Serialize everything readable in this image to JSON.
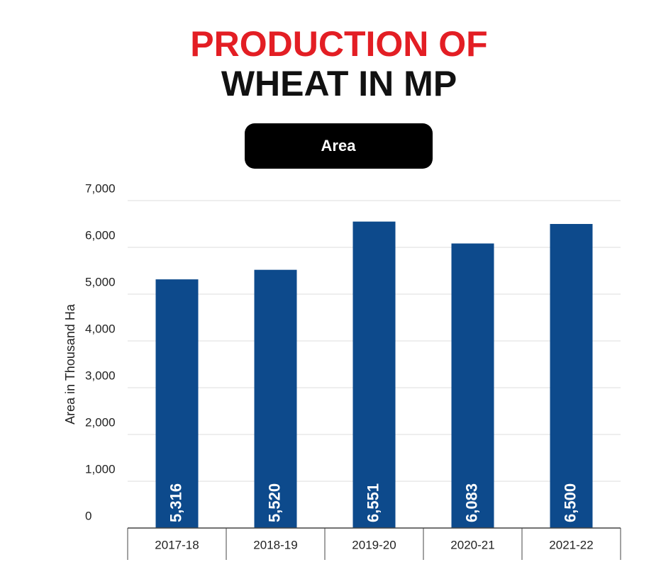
{
  "chart_data": {
    "type": "bar",
    "title": [
      "PRODUCTION OF",
      "WHEAT IN MP"
    ],
    "subtitle": "Area",
    "y_label": "Area in Thousand Ha",
    "categories": [
      "2017-18",
      "2018-19",
      "2019-20",
      "2020-21",
      "2021-22"
    ],
    "values": [
      5316,
      5520,
      6551,
      6083,
      6500
    ],
    "value_labels": [
      "5,316",
      "5,520",
      "6,551",
      "6,083",
      "6,500"
    ],
    "color": "#0d4a8c",
    "ylim": [
      0,
      7000
    ],
    "yticks": [
      0,
      {
        "value": 1000,
        "label": "1,000"
      },
      {
        "value": 2000,
        "label": "2,000"
      },
      {
        "value": 3000,
        "label": "3,000"
      },
      {
        "value": 4000,
        "label": "4,000"
      },
      {
        "value": 5000,
        "label": "5,000"
      },
      {
        "value": 6000,
        "label": "6,000"
      },
      {
        "value": 7000,
        "label": "7,000"
      }
    ],
    "grid": true
  }
}
